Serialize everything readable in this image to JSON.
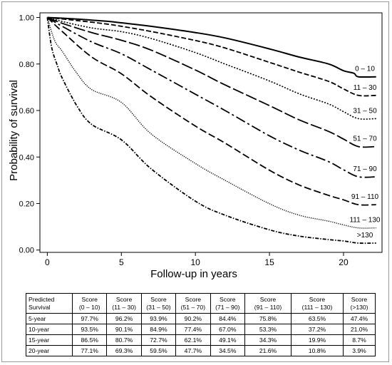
{
  "chart_data": {
    "type": "line",
    "xlabel": "Follow-up in years",
    "ylabel": "Probability of survival",
    "xlim": [
      -0.5,
      22.6
    ],
    "ylim": [
      -0.01,
      1.02
    ],
    "x_ticks": [
      0,
      5,
      10,
      15,
      20
    ],
    "x_tick_labels": [
      "0",
      "5",
      "10",
      "15",
      "20"
    ],
    "y_ticks": [
      0,
      0.2,
      0.4,
      0.6,
      0.8,
      1.0
    ],
    "y_tick_labels": [
      "0.00",
      "0.20",
      "0.40",
      "0.60",
      "0.80",
      "1.00"
    ],
    "grid": false,
    "legend": "labels at line ends (right)",
    "series": [
      {
        "name": "0 – 10",
        "dash": "solid",
        "width": 2.0,
        "points": [
          [
            0,
            1.0
          ],
          [
            2,
            0.993
          ],
          [
            4,
            0.984
          ],
          [
            5,
            0.977
          ],
          [
            7,
            0.962
          ],
          [
            10,
            0.935
          ],
          [
            12,
            0.912
          ],
          [
            15,
            0.865
          ],
          [
            17,
            0.83
          ],
          [
            19,
            0.8
          ],
          [
            20,
            0.771
          ],
          [
            20.7,
            0.76
          ],
          [
            21,
            0.745
          ],
          [
            22.2,
            0.745
          ]
        ]
      },
      {
        "name": "11 – 30",
        "dash": "7,3",
        "width": 1.8,
        "points": [
          [
            0,
            1.0
          ],
          [
            2,
            0.987
          ],
          [
            4,
            0.972
          ],
          [
            5,
            0.962
          ],
          [
            7,
            0.94
          ],
          [
            10,
            0.901
          ],
          [
            12,
            0.869
          ],
          [
            15,
            0.807
          ],
          [
            17,
            0.765
          ],
          [
            19,
            0.725
          ],
          [
            20,
            0.693
          ],
          [
            21,
            0.665
          ],
          [
            22.2,
            0.665
          ]
        ]
      },
      {
        "name": "31 – 50",
        "dash": "2,2",
        "width": 1.6,
        "points": [
          [
            0,
            1.0
          ],
          [
            1,
            0.983
          ],
          [
            3,
            0.955
          ],
          [
            5,
            0.939
          ],
          [
            7,
            0.91
          ],
          [
            10,
            0.849
          ],
          [
            12,
            0.8
          ],
          [
            15,
            0.727
          ],
          [
            17,
            0.672
          ],
          [
            19,
            0.628
          ],
          [
            20,
            0.595
          ],
          [
            21,
            0.565
          ],
          [
            22.2,
            0.565
          ]
        ]
      },
      {
        "name": "51 – 70",
        "dash": "16,4",
        "width": 1.8,
        "points": [
          [
            0,
            1.0
          ],
          [
            1,
            0.975
          ],
          [
            3,
            0.935
          ],
          [
            5,
            0.902
          ],
          [
            7,
            0.86
          ],
          [
            10,
            0.774
          ],
          [
            12,
            0.71
          ],
          [
            15,
            0.621
          ],
          [
            17,
            0.56
          ],
          [
            19,
            0.51
          ],
          [
            20,
            0.477
          ],
          [
            21,
            0.445
          ],
          [
            22.2,
            0.445
          ]
        ]
      },
      {
        "name": "71 – 90",
        "dash": "14,4,3,4",
        "width": 1.8,
        "points": [
          [
            0,
            1.0
          ],
          [
            1,
            0.962
          ],
          [
            3,
            0.895
          ],
          [
            5,
            0.844
          ],
          [
            7,
            0.775
          ],
          [
            10,
            0.67
          ],
          [
            12,
            0.6
          ],
          [
            15,
            0.491
          ],
          [
            17,
            0.43
          ],
          [
            19,
            0.38
          ],
          [
            20,
            0.345
          ],
          [
            21,
            0.315
          ],
          [
            22.2,
            0.315
          ]
        ]
      },
      {
        "name": "91 – 110",
        "dash": "10,4",
        "width": 1.8,
        "points": [
          [
            0,
            1.0
          ],
          [
            1,
            0.94
          ],
          [
            3,
            0.83
          ],
          [
            5,
            0.758
          ],
          [
            7,
            0.66
          ],
          [
            10,
            0.533
          ],
          [
            12,
            0.46
          ],
          [
            15,
            0.343
          ],
          [
            17,
            0.28
          ],
          [
            19,
            0.235
          ],
          [
            20,
            0.216
          ],
          [
            21,
            0.195
          ],
          [
            22.2,
            0.195
          ]
        ]
      },
      {
        "name": "111 – 130",
        "dash": "1.2,1.6",
        "width": 1.4,
        "points": [
          [
            0,
            1.0
          ],
          [
            0.5,
            0.9
          ],
          [
            1,
            0.855
          ],
          [
            2,
            0.76
          ],
          [
            3,
            0.69
          ],
          [
            5,
            0.635
          ],
          [
            7,
            0.5
          ],
          [
            10,
            0.372
          ],
          [
            12,
            0.3
          ],
          [
            15,
            0.199
          ],
          [
            17,
            0.15
          ],
          [
            19,
            0.124
          ],
          [
            20,
            0.108
          ],
          [
            21,
            0.095
          ],
          [
            22.2,
            0.095
          ]
        ]
      },
      {
        "name": ">130",
        "dash": "5,2,1.5,2",
        "width": 1.8,
        "points": [
          [
            0,
            1.0
          ],
          [
            0.3,
            0.87
          ],
          [
            0.7,
            0.79
          ],
          [
            1,
            0.74
          ],
          [
            2,
            0.62
          ],
          [
            3,
            0.54
          ],
          [
            5,
            0.474
          ],
          [
            7,
            0.35
          ],
          [
            10,
            0.21
          ],
          [
            12,
            0.15
          ],
          [
            15,
            0.087
          ],
          [
            17,
            0.06
          ],
          [
            19,
            0.045
          ],
          [
            20,
            0.039
          ],
          [
            21,
            0.03
          ],
          [
            22.2,
            0.03
          ]
        ]
      }
    ]
  },
  "table": {
    "header": [
      [
        "Predicted",
        "Survival"
      ],
      [
        "Score",
        "(0 – 10)"
      ],
      [
        "Score",
        "(11 – 30)"
      ],
      [
        "Score",
        "(31 – 50)"
      ],
      [
        "Score",
        "(51 – 70)"
      ],
      [
        "Score",
        "(71 – 90)"
      ],
      [
        "Score",
        "(91 – 110)"
      ],
      [
        "Score",
        "(111 – 130)"
      ],
      [
        "Score",
        "(>130)"
      ]
    ],
    "rows": [
      [
        "5-year",
        "97.7%",
        "96.2%",
        "93.9%",
        "90.2%",
        "84.4%",
        "75.8%",
        "63.5%",
        "47.4%"
      ],
      [
        "10-year",
        "93.5%",
        "90.1%",
        "84.9%",
        "77.4%",
        "67.0%",
        "53.3%",
        "37.2%",
        "21.0%"
      ],
      [
        "15-year",
        "86.5%",
        "80.7%",
        "72.7%",
        "62.1%",
        "49.1%",
        "34.3%",
        "19.9%",
        "8.7%"
      ],
      [
        "20-year",
        "77.1%",
        "69.3%",
        "59.5%",
        "47.7%",
        "34.5%",
        "21.6%",
        "10.8%",
        "3.9%"
      ]
    ]
  }
}
